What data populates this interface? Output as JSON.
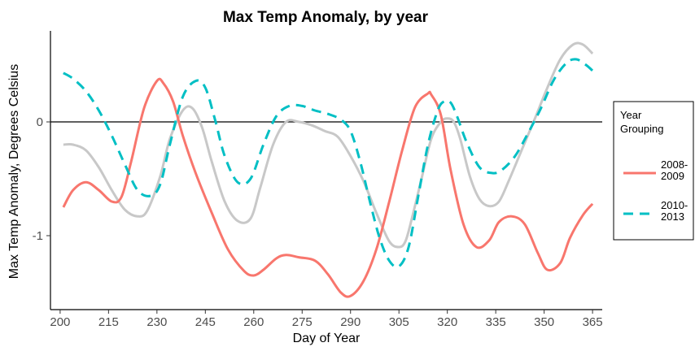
{
  "chart_data": {
    "type": "line",
    "title": "Max Temp Anomaly, by year",
    "xlabel": "Day of Year",
    "ylabel": "Max Temp Anomaly, Degrees Celsius",
    "xlim": [
      197,
      368
    ],
    "ylim": [
      -1.65,
      0.8
    ],
    "xticks": [
      200,
      215,
      230,
      245,
      260,
      275,
      290,
      305,
      320,
      335,
      350,
      365
    ],
    "yticks": [
      {
        "value": 0,
        "label": "0"
      },
      {
        "value": -1,
        "label": "-1"
      }
    ],
    "reference_line": {
      "y": 0,
      "color": "#000000"
    },
    "grid": false,
    "legend": {
      "title_lines": [
        "Year",
        "Grouping"
      ],
      "placement": "right",
      "entries": [
        {
          "label_lines": [
            "2008-",
            "2009"
          ],
          "series": 0
        },
        {
          "label_lines": [
            "2010-",
            "2013"
          ],
          "series": 1
        }
      ]
    },
    "series": [
      {
        "name": "2008-2009",
        "color": "#F8766D",
        "dash": "solid",
        "x": [
          201,
          204,
          208,
          212,
          216,
          219,
          222,
          226,
          230,
          232,
          235,
          238,
          242,
          247,
          252,
          257,
          260,
          263,
          267,
          270,
          274,
          279,
          283,
          287,
          290,
          294,
          298,
          302,
          306,
          310,
          314,
          315,
          318,
          321,
          325,
          329,
          333,
          336,
          340,
          344,
          348,
          351,
          355,
          358,
          362,
          365
        ],
        "y": [
          -0.75,
          -0.6,
          -0.53,
          -0.6,
          -0.7,
          -0.66,
          -0.35,
          0.12,
          0.36,
          0.34,
          0.18,
          -0.12,
          -0.45,
          -0.8,
          -1.12,
          -1.31,
          -1.35,
          -1.3,
          -1.2,
          -1.17,
          -1.19,
          -1.22,
          -1.34,
          -1.5,
          -1.53,
          -1.4,
          -1.12,
          -0.7,
          -0.25,
          0.13,
          0.25,
          0.24,
          0.06,
          -0.42,
          -0.9,
          -1.1,
          -1.04,
          -0.88,
          -0.83,
          -0.9,
          -1.15,
          -1.3,
          -1.24,
          -1.02,
          -0.82,
          -0.72
        ]
      },
      {
        "name": "2010-2013",
        "color": "#00BFC4",
        "dash": "dashed",
        "x": [
          201,
          204,
          208,
          212,
          216,
          220,
          224,
          228,
          231,
          234,
          238,
          242,
          245,
          248,
          251,
          255,
          259,
          263,
          267,
          271,
          275,
          279,
          283,
          287,
          290,
          293,
          296,
          299,
          302,
          305,
          308,
          311,
          314,
          317,
          319,
          321,
          323,
          326,
          330,
          334,
          337,
          341,
          345,
          349,
          353,
          357,
          360,
          363,
          365
        ],
        "y": [
          0.43,
          0.38,
          0.27,
          0.1,
          -0.12,
          -0.37,
          -0.6,
          -0.65,
          -0.55,
          -0.2,
          0.22,
          0.36,
          0.3,
          0.02,
          -0.3,
          -0.53,
          -0.5,
          -0.2,
          0.05,
          0.14,
          0.14,
          0.1,
          0.07,
          0.02,
          -0.08,
          -0.35,
          -0.7,
          -1.02,
          -1.22,
          -1.27,
          -1.1,
          -0.65,
          -0.2,
          0.1,
          0.18,
          0.17,
          0.05,
          -0.18,
          -0.4,
          -0.45,
          -0.42,
          -0.3,
          -0.1,
          0.12,
          0.37,
          0.52,
          0.55,
          0.5,
          0.45
        ]
      },
      {
        "name": "",
        "color": "#C8C8C8",
        "dash": "solid",
        "x": [
          201,
          204,
          208,
          212,
          216,
          220,
          224,
          227,
          231,
          234,
          238,
          241,
          244,
          247,
          251,
          255,
          259,
          262,
          266,
          270,
          274,
          278,
          282,
          286,
          290,
          294,
          298,
          302,
          305,
          307,
          309,
          312,
          315,
          318,
          320,
          322,
          324,
          327,
          330,
          333,
          336,
          339,
          343,
          347,
          351,
          355,
          359,
          362,
          365
        ],
        "y": [
          -0.2,
          -0.2,
          -0.25,
          -0.4,
          -0.6,
          -0.77,
          -0.83,
          -0.78,
          -0.48,
          -0.15,
          0.1,
          0.12,
          -0.05,
          -0.35,
          -0.7,
          -0.87,
          -0.85,
          -0.58,
          -0.2,
          0.0,
          0.0,
          -0.03,
          -0.08,
          -0.13,
          -0.3,
          -0.52,
          -0.8,
          -1.05,
          -1.1,
          -1.05,
          -0.85,
          -0.5,
          -0.15,
          0.0,
          0.03,
          0.0,
          -0.15,
          -0.48,
          -0.68,
          -0.74,
          -0.7,
          -0.52,
          -0.25,
          0.02,
          0.3,
          0.55,
          0.68,
          0.68,
          0.6
        ]
      }
    ]
  }
}
